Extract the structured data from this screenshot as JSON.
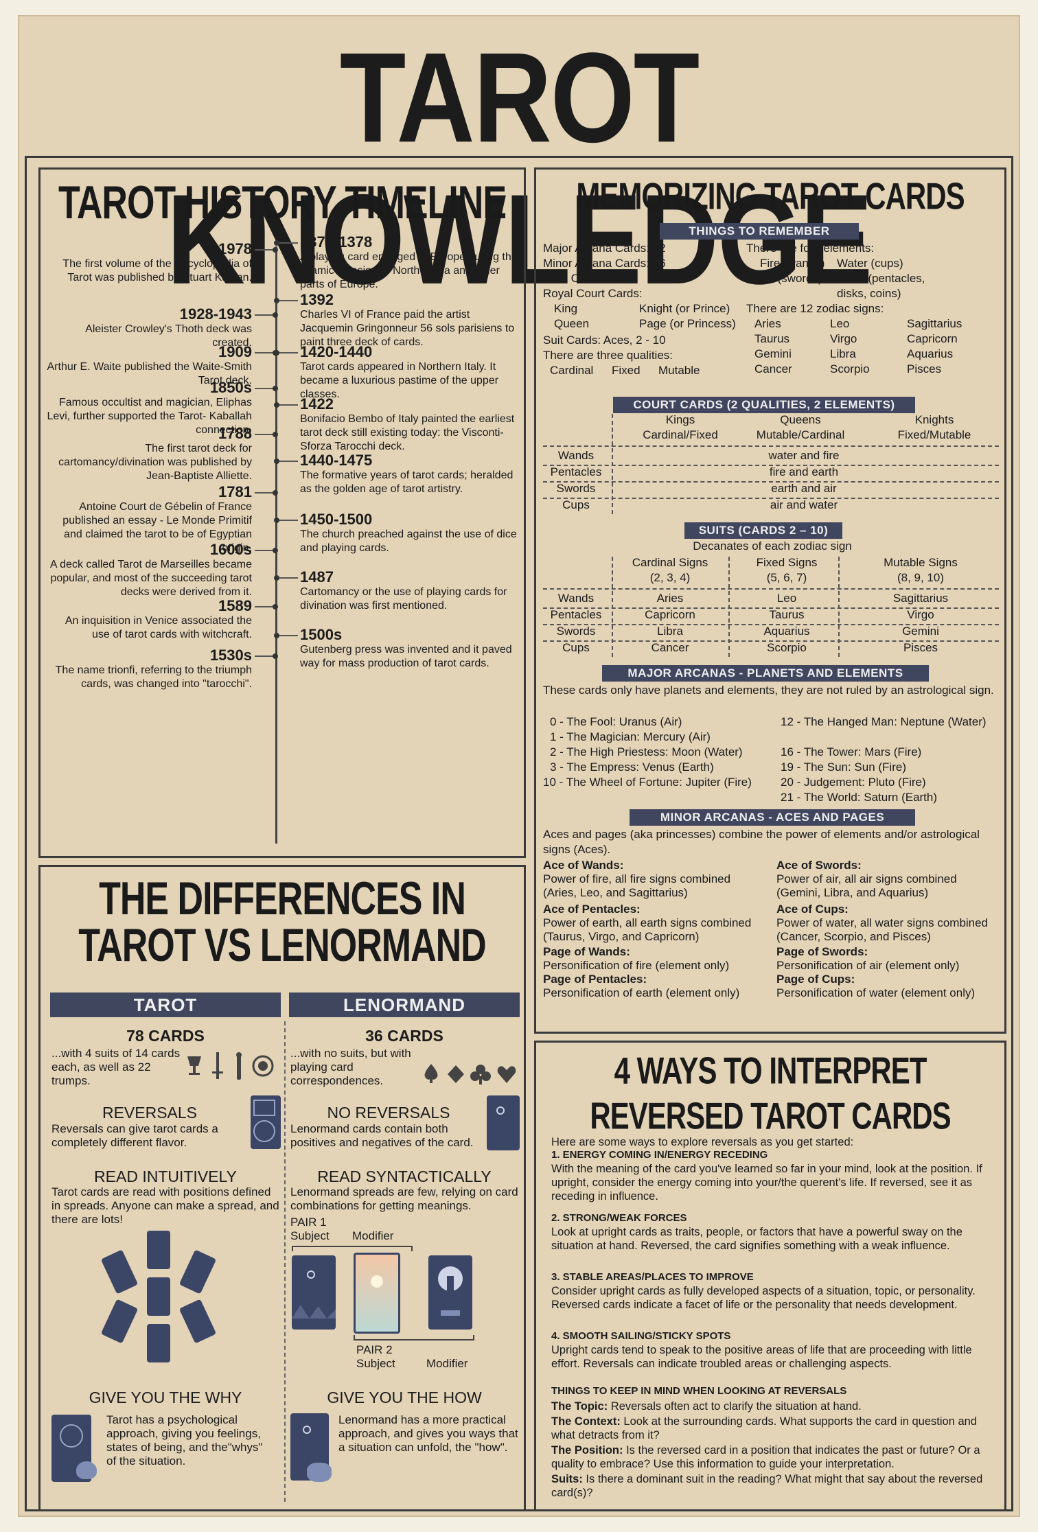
{
  "title": "TAROT KNOWLEDGE",
  "history": {
    "title": "TAROT HISTORY TIMELINE",
    "left": [
      {
        "year": "1978",
        "text": "The first volume of the Encyclopedia of Tarot was published by Stuart Kaplan."
      },
      {
        "year": "1928-1943",
        "text": "Aleister Crowley's Thoth deck was created."
      },
      {
        "year": "1909",
        "text": "Arthur E. Waite published the Waite-Smith Tarot deck."
      },
      {
        "year": "1850s",
        "text": "Famous occultist and magician, Eliphas Levi, further supported the Tarot- Kaballah connection."
      },
      {
        "year": "1788",
        "text": "The first tarot deck for cartomancy/divination was published by Jean-Baptiste Alliette."
      },
      {
        "year": "1781",
        "text": "Antoine Court de Gébelin of France published an essay - Le Monde Primitif and claimed the tarot to be of Egyptian origin."
      },
      {
        "year": "1600s",
        "text": "A deck called Tarot de Marseilles became popular, and most of the succeeding tarot decks were derived from it."
      },
      {
        "year": "1589",
        "text": "An inquisition in Venice associated the use of tarot cards with witchcraft."
      },
      {
        "year": "1530s",
        "text": "The name trionfi, referring to the triumph cards, was changed into \"tarocchi\"."
      }
    ],
    "right": [
      {
        "year": "1375-1378",
        "text": "A playing card emerged in Europe during the Islamic invasion of North Africa and other parts of Europe."
      },
      {
        "year": "1392",
        "text": "Charles VI of France paid the artist Jacquemin Gringonneur 56 sols parisiens to paint three deck of cards."
      },
      {
        "year": "1420-1440",
        "text": "Tarot cards appeared in Northern Italy. It became a luxurious pastime of the upper classes."
      },
      {
        "year": "1422",
        "text": "Bonifacio Bembo of Italy painted the earliest tarot deck still existing today: the Visconti-Sforza Tarocchi deck."
      },
      {
        "year": "1440-1475",
        "text": "The formative years of tarot cards; heralded as the golden age of tarot artistry."
      },
      {
        "year": "1450-1500",
        "text": "The church preached against the use of dice and playing cards."
      },
      {
        "year": "1487",
        "text": "Cartomancy or the use of playing cards for divination was first mentioned."
      },
      {
        "year": "1500s",
        "text": "Gutenberg press was invented and it paved way for mass production of tarot cards."
      }
    ]
  },
  "memorizing": {
    "title": "MEMORIZING TAROT CARDS",
    "things_band": "THINGS TO REMEMBER",
    "things_left": [
      "Major Arcana Cards: 22",
      "Minor Arcana Cards: 56",
      "Total Cards: 78",
      "Royal Court Cards:"
    ],
    "royal": [
      "King",
      "Knight (or Prince)",
      "Queen",
      "Page (or Princess)"
    ],
    "suit_cards": "Suit Cards: Aces, 2 - 10",
    "qualities_line": "There are three qualities:",
    "qualities": [
      "Cardinal",
      "Fixed",
      "Mutable"
    ],
    "elements_line": "There are four elements:",
    "elements": [
      "Fire (wands)",
      "Water (cups)",
      "Air (swords)",
      "Earth (pentacles, disks, coins)"
    ],
    "zodiac_line": "There are 12 zodiac signs:",
    "zodiac": [
      "Aries",
      "Leo",
      "Sagittarius",
      "Taurus",
      "Virgo",
      "Capricorn",
      "Gemini",
      "Libra",
      "Aquarius",
      "Cancer",
      "Scorpio",
      "Pisces"
    ],
    "court_band": "COURT CARDS (2 QUALITIES, 2 ELEMENTS)",
    "court_headers": [
      [
        "Kings",
        "Cardinal/Fixed"
      ],
      [
        "Queens",
        "Mutable/Cardinal"
      ],
      [
        "Knights",
        "Fixed/Mutable"
      ]
    ],
    "court_rows": [
      [
        "Wands",
        "water and fire"
      ],
      [
        "Pentacles",
        "fire and earth"
      ],
      [
        "Swords",
        "earth and air"
      ],
      [
        "Cups",
        "air and water"
      ]
    ],
    "suits_band": "SUITS (CARDS 2 – 10)",
    "suits_sub": "Decanates of each zodiac sign",
    "suits_headers": [
      [
        "Cardinal Signs",
        "(2, 3, 4)"
      ],
      [
        "Fixed Signs",
        "(5, 6, 7)"
      ],
      [
        "Mutable Signs",
        "(8, 9, 10)"
      ]
    ],
    "suits_rows": [
      [
        "Wands",
        "Aries",
        "Leo",
        "Sagittarius"
      ],
      [
        "Pentacles",
        "Capricorn",
        "Taurus",
        "Virgo"
      ],
      [
        "Swords",
        "Libra",
        "Aquarius",
        "Gemini"
      ],
      [
        "Cups",
        "Cancer",
        "Scorpio",
        "Pisces"
      ]
    ],
    "major_band": "MAJOR ARCANAS - PLANETS AND ELEMENTS",
    "major_intro": "These cards only have planets and elements, they are not ruled by an astrological sign.",
    "major_left": [
      "0 - The Fool: Uranus (Air)",
      "1 - The Magician: Mercury (Air)",
      "2 - The High Priestess: Moon (Water)",
      "3 - The Empress: Venus (Earth)",
      "10 - The Wheel of Fortune: Jupiter (Fire)"
    ],
    "major_right": [
      "12 - The Hanged Man: Neptune (Water)",
      "16 - The Tower: Mars (Fire)",
      "19 - The Sun: Sun (Fire)",
      "20 - Judgement: Pluto (Fire)",
      "21 - The World: Saturn (Earth)"
    ],
    "minor_band": "MINOR ARCANAS - ACES AND PAGES",
    "minor_intro": "Aces and pages (aka princesses) combine the power of elements and/or astrological signs (Aces).",
    "minor_left": [
      {
        "h": "Ace of Wands:",
        "t": "Power of fire, all fire signs combined (Aries, Leo, and Sagittarius)"
      },
      {
        "h": "Ace of Pentacles:",
        "t": "Power of earth, all earth signs combined (Taurus, Virgo, and Capricorn)"
      },
      {
        "h": "Page of Wands:",
        "t": "Personification of fire (element only)"
      },
      {
        "h": "Page of Pentacles:",
        "t": "Personification of earth (element only)"
      }
    ],
    "minor_right": [
      {
        "h": "Ace of Swords:",
        "t": "Power of air, all air signs combined (Gemini, Libra, and Aquarius)"
      },
      {
        "h": "Ace of Cups:",
        "t": "Power of water, all water signs combined (Cancer, Scorpio, and Pisces)"
      },
      {
        "h": "Page of Swords:",
        "t": "Personification of air (element only)"
      },
      {
        "h": "Page of Cups:",
        "t": "Personification of water (element only)"
      }
    ]
  },
  "differences": {
    "title1": "THE DIFFERENCES IN",
    "title2": "TAROT VS LENORMAND",
    "tarot": {
      "head": "TAROT",
      "cards": "78 CARDS",
      "cards_text": "...with 4 suits of 14 cards each, as well as 22 trumps.",
      "h1": "REVERSALS",
      "t1": "Reversals can give tarot cards a completely different flavor.",
      "h2": "READ INTUITIVELY",
      "t2": "Tarot cards are read with positions defined in spreads. Anyone can make a spread, and there are lots!",
      "h3": "GIVE YOU THE WHY",
      "t3": "Tarot has a psychological approach, giving you feelings, states of being, and the\"whys\" of the situation."
    },
    "lenormand": {
      "head": "LENORMAND",
      "cards": "36 CARDS",
      "cards_text": "...with no suits, but with playing card correspondences.",
      "h1": "NO REVERSALS",
      "t1": "Lenormand cards contain both positives and negatives of the card.",
      "h2": "READ SYNTACTICALLY",
      "t2": "Lenormand spreads are few, relying on card combinations for getting meanings.",
      "pair1": "PAIR 1",
      "pair2": "PAIR 2",
      "subject": "Subject",
      "modifier": "Modifier",
      "h3": "GIVE YOU THE HOW",
      "t3": "Lenormand has a more practical approach, and gives you ways that a situation can unfold, the \"how\"."
    }
  },
  "reversed": {
    "title1": "4 WAYS TO INTERPRET",
    "title2": "REVERSED TAROT CARDS",
    "intro": "Here are some ways to explore reversals as you get started:",
    "items": [
      {
        "h": "1. ENERGY COMING IN/ENERGY RECEDING",
        "t": "With the meaning of the card you've learned so far in your mind, look at the position. If upright, consider the energy coming into your/the querent's life. If reversed, see it as receding in influence."
      },
      {
        "h": "2. STRONG/WEAK FORCES",
        "t": "Look at upright cards as traits, people, or factors that have a powerful sway on the situation at hand. Reversed, the card signifies something with a weak influence."
      },
      {
        "h": "3. STABLE AREAS/PLACES TO IMPROVE",
        "t": "Consider upright cards as fully developed aspects of a situation, topic, or personality. Reversed cards indicate a facet of life or the personality that needs development."
      },
      {
        "h": "4. SMOOTH SAILING/STICKY SPOTS",
        "t": "Upright cards tend to speak to the positive areas of life that are proceeding with little effort. Reversals can indicate troubled areas or challenging aspects."
      },
      {
        "h": "THINGS TO KEEP IN MIND WHEN LOOKING AT REVERSALS",
        "t": ""
      }
    ],
    "notes": [
      {
        "h": "The Topic:",
        "t": "Reversals often act to clarify the situation at hand."
      },
      {
        "h": "The Context:",
        "t": "Look at the surrounding cards. What supports the card in question and what detracts from it?"
      },
      {
        "h": "The Position:",
        "t": "Is the reversed card in a position that indicates the past or future? Or a quality to embrace? Use this information to guide your interpretation."
      },
      {
        "h": "Suits:",
        "t": "Is there a dominant suit in the reading? What might that say about the reversed card(s)?"
      }
    ]
  },
  "colors": {
    "paper": "#e3d3b7",
    "navy": "#41465f",
    "ink": "#1a1a1a"
  }
}
